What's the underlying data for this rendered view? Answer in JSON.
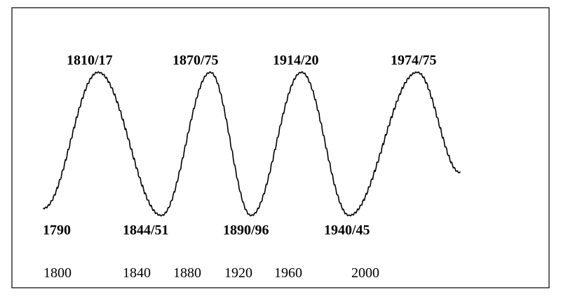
{
  "chart_data": {
    "type": "line",
    "title": "",
    "xlabel": "",
    "ylabel": "",
    "x_ticks": [
      "1800",
      "1840",
      "1880",
      "1920",
      "1960",
      "2000"
    ],
    "grid": false,
    "legend": "none",
    "line_color": "#000000",
    "border_color": "#000000",
    "series": [
      {
        "points": [
          {
            "x": 1790,
            "y": 0.05,
            "type": "trough",
            "label": "1790"
          },
          {
            "x": 1813.5,
            "y": 1.0,
            "type": "peak",
            "label": "1810/17"
          },
          {
            "x": 1847.5,
            "y": 0.0,
            "type": "trough",
            "label": "1844/51"
          },
          {
            "x": 1872.5,
            "y": 1.0,
            "type": "peak",
            "label": "1870/75"
          },
          {
            "x": 1893,
            "y": 0.0,
            "type": "trough",
            "label": "1890/96"
          },
          {
            "x": 1917,
            "y": 1.0,
            "type": "peak",
            "label": "1914/20"
          },
          {
            "x": 1942.5,
            "y": 0.0,
            "type": "trough",
            "label": "1940/45"
          },
          {
            "x": 1974.5,
            "y": 1.0,
            "type": "peak",
            "label": "1974/75"
          },
          {
            "x": 1995,
            "y": 0.3,
            "type": "end"
          }
        ]
      }
    ]
  }
}
